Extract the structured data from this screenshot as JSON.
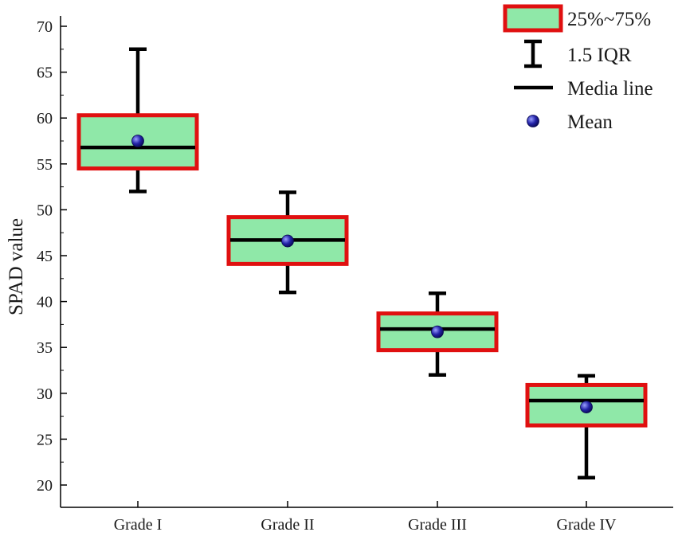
{
  "chart_data": {
    "type": "box",
    "title": "",
    "xlabel": "",
    "ylabel": "SPAD value",
    "ylim": [
      18,
      70
    ],
    "yticks": [
      20,
      25,
      30,
      35,
      40,
      45,
      50,
      55,
      60,
      65,
      70
    ],
    "categories": [
      "Grade I",
      "Grade II",
      "Grade III",
      "Grade IV"
    ],
    "boxes": [
      {
        "category": "Grade I",
        "whisker_low": 52.0,
        "q1": 54.5,
        "median": 56.8,
        "q3": 60.3,
        "whisker_high": 67.5,
        "mean": 57.5
      },
      {
        "category": "Grade II",
        "whisker_low": 41.0,
        "q1": 44.1,
        "median": 46.7,
        "q3": 49.2,
        "whisker_high": 51.9,
        "mean": 46.6
      },
      {
        "category": "Grade III",
        "whisker_low": 32.0,
        "q1": 34.7,
        "median": 37.0,
        "q3": 38.7,
        "whisker_high": 40.9,
        "mean": 36.7
      },
      {
        "category": "Grade IV",
        "whisker_low": 20.8,
        "q1": 26.5,
        "median": 29.2,
        "q3": 30.9,
        "whisker_high": 31.9,
        "mean": 28.5
      }
    ],
    "legend": {
      "position": "top-right",
      "entries": [
        {
          "key": "box",
          "label": "25%~75%"
        },
        {
          "key": "whisker",
          "label": "1.5 IQR"
        },
        {
          "key": "median",
          "label": "Media line"
        },
        {
          "key": "mean",
          "label": "Mean"
        }
      ]
    },
    "colors": {
      "box_fill": "#8fe8a8",
      "box_border": "#e01010",
      "line": "#000000",
      "mean_dot": "#1c1ca0",
      "axis": "#000000"
    }
  }
}
